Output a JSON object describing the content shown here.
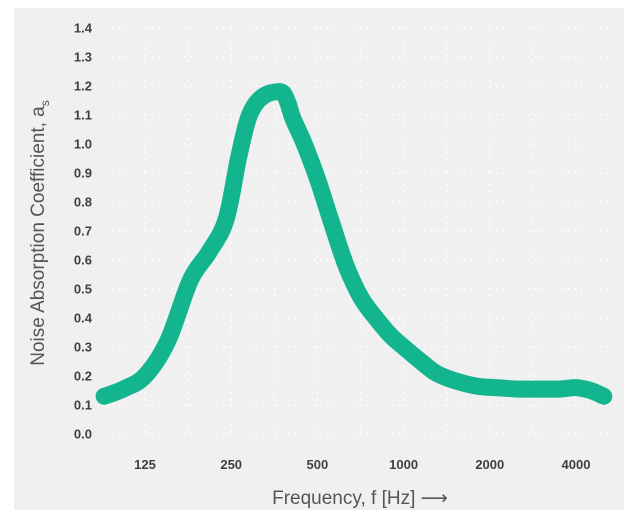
{
  "chart_data": {
    "type": "line",
    "xscale": "log",
    "x_ticks": [
      125,
      250,
      500,
      1000,
      2000,
      4000
    ],
    "x_tick_labels": [
      "125",
      "250",
      "500",
      "1000",
      "2000",
      "4000"
    ],
    "y_ticks": [
      0.0,
      0.1,
      0.2,
      0.3,
      0.4,
      0.5,
      0.6,
      0.7,
      0.8,
      0.9,
      1.0,
      1.1,
      1.2,
      1.3,
      1.4
    ],
    "y_tick_labels": [
      "0.0",
      "0.1",
      "0.2",
      "0.3",
      "0.4",
      "0.5",
      "0.6",
      "0.7",
      "0.8",
      "0.9",
      "1.0",
      "1.1",
      "1.2",
      "1.3",
      "1.4"
    ],
    "ylim": [
      0,
      1.4
    ],
    "xlim": [
      90,
      5000
    ],
    "xlabel": "Frequency, f [Hz] ⟶",
    "ylabel": "Noise Absorption Coefficient, a",
    "ylabel_subscript": "s",
    "grid": true,
    "series": [
      {
        "x": [
          90,
          105,
          125,
          150,
          180,
          210,
          240,
          265,
          285,
          305,
          330,
          360,
          380,
          395,
          410,
          450,
          500,
          560,
          630,
          710,
          800,
          900,
          1000,
          1150,
          1300,
          1500,
          1800,
          2100,
          2500,
          3000,
          3500,
          4000,
          4500,
          5000
        ],
        "y": [
          0.13,
          0.155,
          0.2,
          0.32,
          0.53,
          0.63,
          0.74,
          0.95,
          1.08,
          1.14,
          1.17,
          1.18,
          1.175,
          1.14,
          1.09,
          1.0,
          0.88,
          0.73,
          0.58,
          0.47,
          0.4,
          0.34,
          0.3,
          0.25,
          0.21,
          0.185,
          0.165,
          0.16,
          0.155,
          0.155,
          0.155,
          0.16,
          0.15,
          0.13
        ],
        "color": "#13b58e"
      }
    ]
  }
}
